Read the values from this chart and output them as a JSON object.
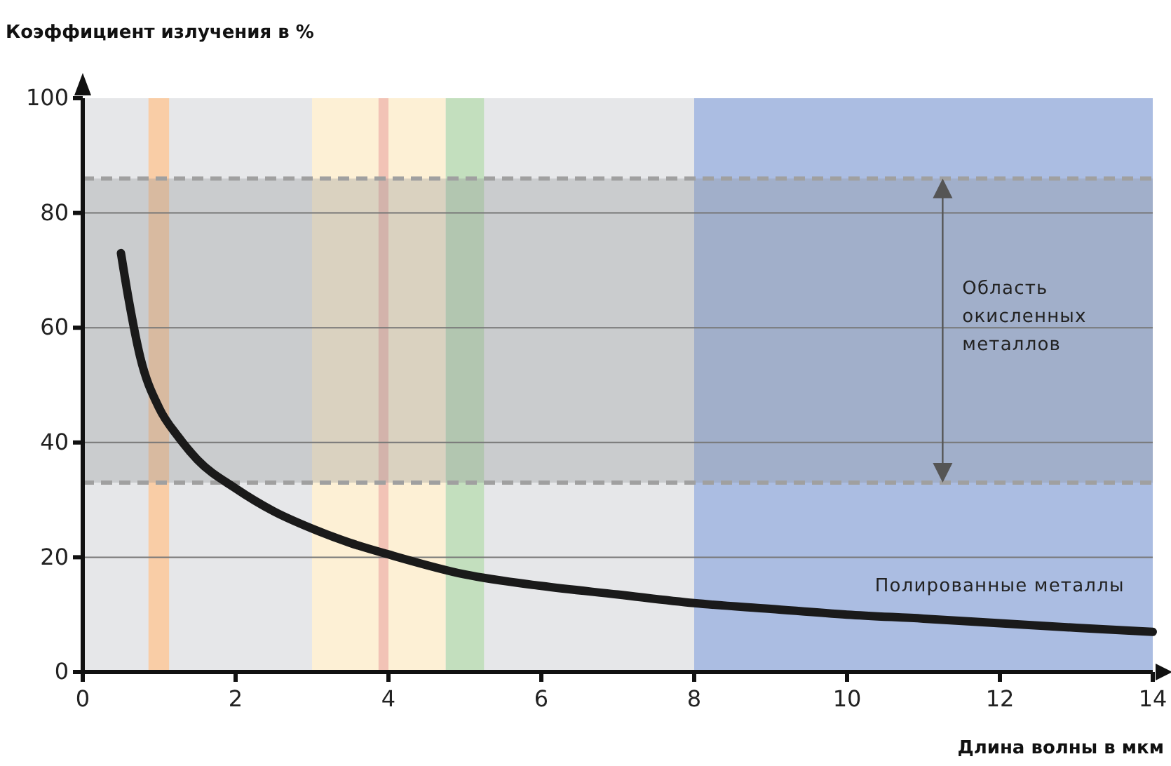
{
  "chart_data": {
    "type": "line",
    "ylabel": "Коэффициент излучения в %",
    "xlabel": "Длина волны в мкм",
    "xlim": [
      0,
      14
    ],
    "xticks": [
      0,
      2,
      4,
      6,
      8,
      10,
      12,
      14
    ],
    "ylim": [
      0,
      100
    ],
    "yticks": [
      0,
      20,
      40,
      60,
      80,
      100
    ],
    "grid": "y",
    "series": [
      {
        "color": "#1a1a1a",
        "x": [
          0.5,
          0.6,
          0.75,
          1,
          1.25,
          1.5,
          2,
          2.5,
          3,
          3.5,
          4,
          5,
          6,
          7,
          8,
          9,
          10,
          11,
          12,
          13,
          14
        ],
        "values": [
          73,
          65,
          55,
          46,
          41,
          37,
          32,
          28,
          25,
          22.5,
          20.5,
          17,
          15,
          13.5,
          12,
          11,
          10,
          9.3,
          8.5,
          7.7,
          7
        ]
      }
    ],
    "bands": [
      {
        "axis": "x",
        "from": 0,
        "to": 8,
        "color": "#e6e7e9"
      },
      {
        "axis": "x",
        "from": 8,
        "to": 14,
        "color": "#abbde2"
      },
      {
        "axis": "x",
        "from": 0.86,
        "to": 1.13,
        "color": "#f9cda6"
      },
      {
        "axis": "x",
        "from": 3,
        "to": 4.75,
        "color": "#fdf0d5"
      },
      {
        "axis": "x",
        "from": 3.87,
        "to": 4,
        "color": "#f2c3b6"
      },
      {
        "axis": "x",
        "from": 4.75,
        "to": 5.25,
        "color": "#c3dfbe"
      },
      {
        "axis": "y",
        "from": 33,
        "to": 86,
        "color": "#8a8d93"
      }
    ],
    "ref_lines": [
      {
        "axis": "y",
        "value": 86,
        "color": "#a0a0a0",
        "line_style": "dashed"
      },
      {
        "axis": "y",
        "value": 33,
        "color": "#a0a0a0",
        "line_style": "dashed"
      }
    ],
    "annotations": [
      "Область окисленных металлов",
      "Полированные металлы"
    ],
    "line_style": "solid",
    "marker": "none"
  }
}
